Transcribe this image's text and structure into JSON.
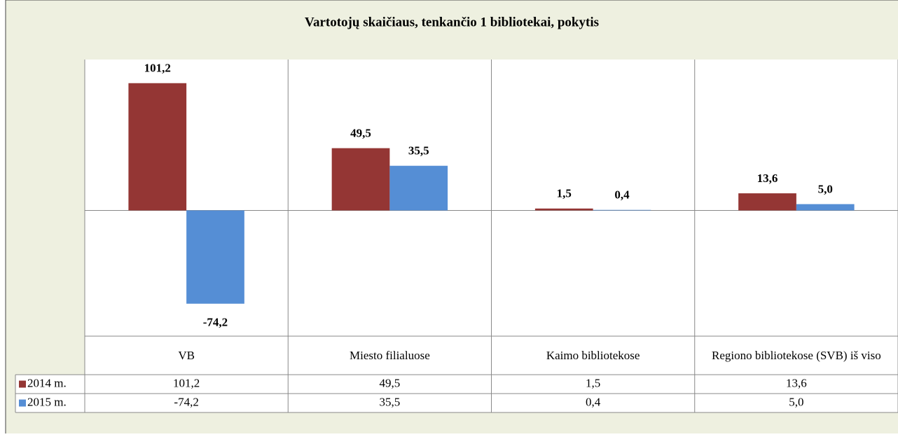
{
  "chart_data": {
    "type": "bar",
    "title": "Vartotojų skaičiaus, tenkančio 1 bibliotekai, pokytis",
    "categories": [
      "VB",
      "Miesto filialuose",
      "Kaimo bibliotekose",
      "Regiono bibliotekose (SVB) iš viso"
    ],
    "series": [
      {
        "name": "2014 m.",
        "color": "#943634",
        "values": [
          101.2,
          49.5,
          1.5,
          13.6
        ],
        "value_labels": [
          "101,2",
          "49,5",
          "1,5",
          "13,6"
        ]
      },
      {
        "name": "2015 m.",
        "color": "#558ed5",
        "values": [
          -74.2,
          35.5,
          0.4,
          5.0
        ],
        "value_labels": [
          "-74,2",
          "35,5",
          "0,4",
          "5,0"
        ]
      }
    ],
    "ylim": [
      -100,
      120
    ]
  }
}
